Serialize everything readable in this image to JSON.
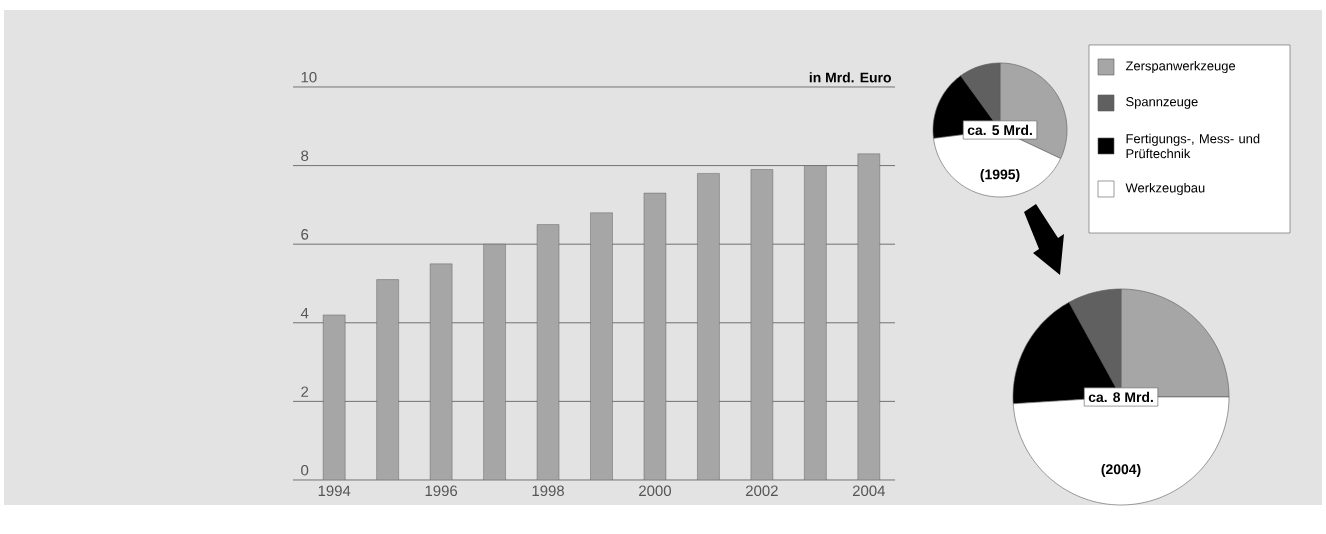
{
  "chart_data": [
    {
      "type": "bar",
      "ylabel": "in Mrd. Euro",
      "categories": [
        "1994",
        null,
        "1996",
        null,
        "1998",
        null,
        "2000",
        null,
        "2002",
        null,
        "2004"
      ],
      "values": [
        4.2,
        5.1,
        5.5,
        6.0,
        6.5,
        6.8,
        7.3,
        7.8,
        7.9,
        8.0,
        8.3
      ],
      "color": "#a6a6a6",
      "ylim": [
        0,
        10
      ],
      "yticks": [
        0,
        2,
        4,
        6,
        8,
        10
      ],
      "grid": "y"
    },
    {
      "type": "pie",
      "categories": [
        "Zerspanwerkzeuge",
        "Spannzeuge",
        "Fertigungs-, Mess- und Prüftechnik",
        "Werkzeugbau"
      ],
      "colors": [
        "#a6a6a6",
        "#606060",
        "#000000",
        "#ffffff"
      ],
      "series": [
        {
          "name": "(1995)",
          "values": [
            32,
            10,
            17,
            41
          ]
        },
        {
          "name": "(2004)",
          "values": [
            25,
            8,
            18,
            49
          ]
        }
      ],
      "annotations": [
        "ca. 5 Mrd.",
        "ca. 8 Mrd."
      ],
      "legend": "top right"
    }
  ]
}
